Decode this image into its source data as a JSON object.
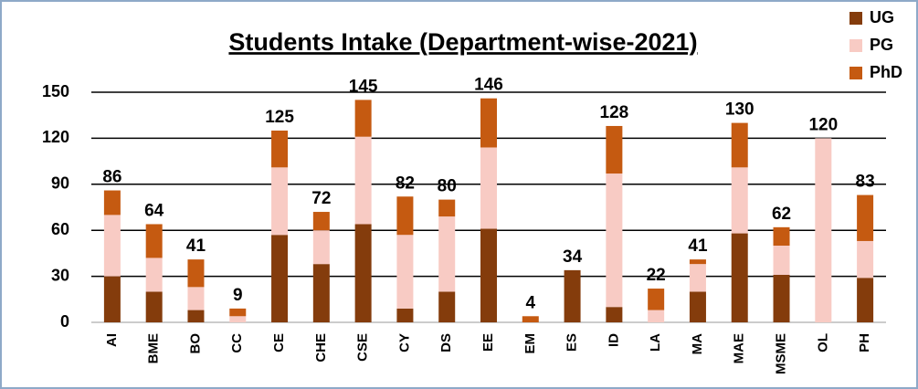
{
  "chart_data": {
    "type": "stacked_bar",
    "title": "Students Intake (Department-wise-2021)",
    "categories": [
      "AI",
      "BME",
      "BO",
      "CC",
      "CE",
      "CHE",
      "CSE",
      "CY",
      "DS",
      "EE",
      "EM",
      "ES",
      "ID",
      "LA",
      "MA",
      "MAE",
      "MSME",
      "OL",
      "PH"
    ],
    "series": [
      {
        "name": "UG",
        "color": "#843c0c",
        "values": [
          30,
          20,
          8,
          0,
          57,
          38,
          64,
          9,
          20,
          61,
          0,
          34,
          10,
          0,
          20,
          58,
          31,
          0,
          29
        ]
      },
      {
        "name": "PG",
        "color": "#f8cbc4",
        "values": [
          40,
          22,
          15,
          4,
          44,
          22,
          57,
          48,
          49,
          53,
          0,
          0,
          87,
          8,
          18,
          43,
          19,
          120,
          24
        ]
      },
      {
        "name": "PhD",
        "color": "#c55a11",
        "values": [
          16,
          22,
          18,
          5,
          24,
          12,
          24,
          25,
          11,
          32,
          4,
          0,
          31,
          14,
          3,
          29,
          12,
          0,
          30
        ]
      }
    ],
    "totals": [
      86,
      64,
      41,
      9,
      125,
      72,
      145,
      82,
      80,
      146,
      4,
      34,
      128,
      22,
      41,
      130,
      62,
      120,
      83
    ],
    "ylim": [
      0,
      150
    ],
    "yticks": [
      0,
      30,
      60,
      90,
      120,
      150
    ],
    "grid": true,
    "legend": "top-right"
  }
}
